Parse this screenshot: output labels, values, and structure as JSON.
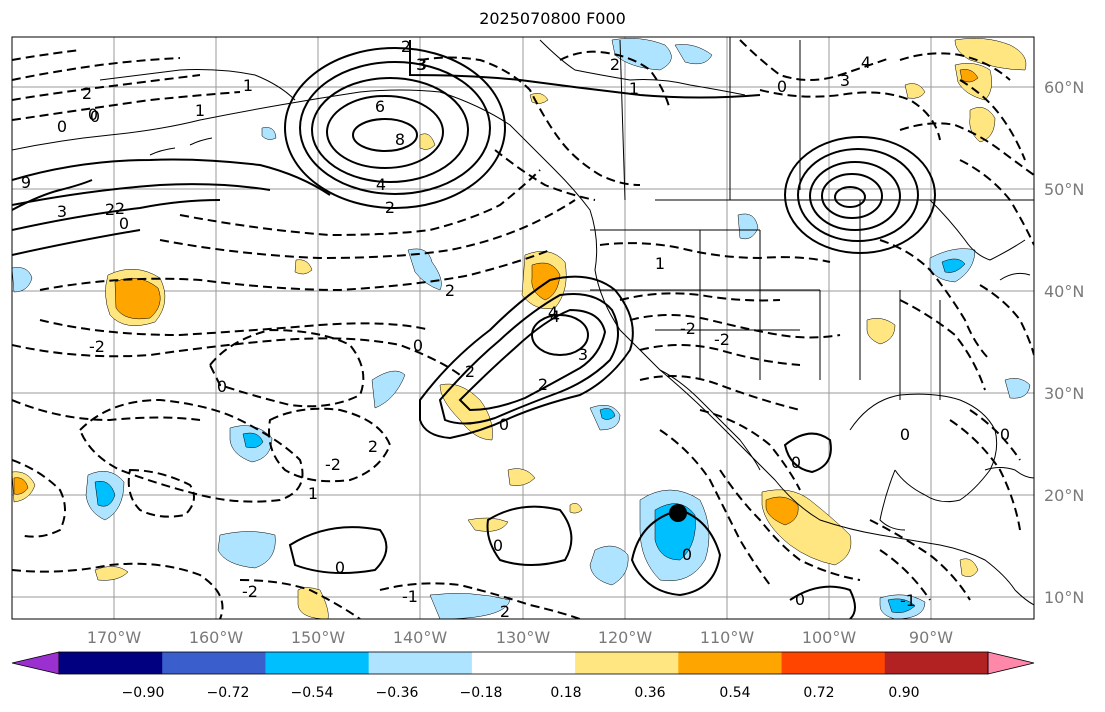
{
  "title": "2025070800 F000",
  "lon_labels": [
    "170°W",
    "160°W",
    "150°W",
    "140°W",
    "130°W",
    "120°W",
    "110°W",
    "100°W",
    "90°W"
  ],
  "lat_labels": [
    "60°N",
    "50°N",
    "40°N",
    "30°N",
    "20°N",
    "10°N"
  ],
  "colorbar": {
    "ticks": [
      "−0.90",
      "−0.72",
      "−0.54",
      "−0.36",
      "−0.18",
      "0.18",
      "0.36",
      "0.54",
      "0.72",
      "0.90"
    ],
    "colors": [
      "#9b30d0",
      "#000080",
      "#3a5fcd",
      "#00bfff",
      "#aee4ff",
      "#ffffff",
      "#ffe680",
      "#ffa500",
      "#ff4500",
      "#b22222",
      "#ff88aa"
    ]
  },
  "contour_labels": [
    "2",
    "3",
    "6",
    "8",
    "4",
    "2",
    "0",
    "2",
    "0",
    "2",
    "1",
    "1",
    "0",
    "9",
    "3",
    "2",
    "0",
    "-2",
    "0",
    "2",
    "4",
    "3",
    "2",
    "0",
    "2",
    "-2",
    "2",
    "1",
    "0",
    "-2",
    "-1",
    "0",
    "2",
    "0",
    "1",
    "4",
    "3",
    "0",
    "-2",
    "-2",
    "-1",
    "0",
    "0",
    "0",
    "2",
    "3",
    "4",
    "0",
    "1",
    "0"
  ],
  "marker": "storm-center"
}
